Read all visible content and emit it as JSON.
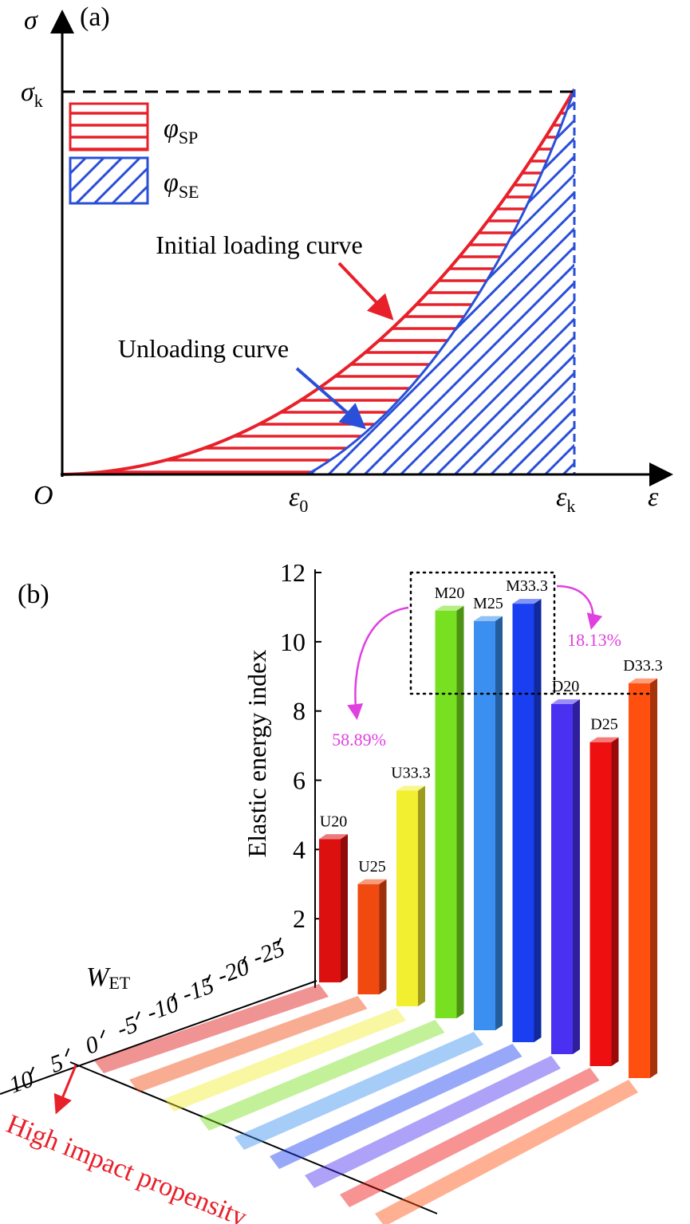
{
  "panel_a": {
    "label": "(a)",
    "y_axis": "σ",
    "x_axis": "ε",
    "origin": "O",
    "sigma_k": {
      "symbol": "σ",
      "sub": "k"
    },
    "eps_0": {
      "symbol": "ε",
      "sub": "0"
    },
    "eps_k": {
      "symbol": "ε",
      "sub": "k"
    },
    "legend": [
      {
        "symbol": "φ",
        "sub": "SP"
      },
      {
        "symbol": "φ",
        "sub": "SE"
      }
    ],
    "loading_label": "Initial loading curve",
    "unloading_label": "Unloading curve"
  },
  "chart_data": {
    "type": "bar",
    "panel_label": "(b)",
    "y_label": "Elastic energy index",
    "categories": [
      "U20",
      "U25",
      "U33.3",
      "M20",
      "M25",
      "M33.3",
      "D20",
      "D25",
      "D33.3"
    ],
    "values": [
      4.3,
      3.0,
      5.7,
      10.9,
      10.6,
      11.1,
      8.2,
      7.1,
      8.8
    ],
    "colors": [
      "#dd1010",
      "#f04a10",
      "#f2ee30",
      "#77e020",
      "#3a8ff0",
      "#1a3ff0",
      "#4a30f0",
      "#ee1010",
      "#ff5010"
    ],
    "ylim": [
      0,
      12
    ],
    "yticks": [
      2,
      4,
      6,
      8,
      10,
      12
    ],
    "depth_label": {
      "symbol": "W",
      "sub": "ET"
    },
    "depth_lim": [
      10,
      -25
    ],
    "depth_ticks": [
      10,
      5,
      0,
      -5,
      -10,
      -15,
      -20,
      -25
    ],
    "annotations": [
      "58.89%",
      "18.13%"
    ],
    "note": "High impact propensity"
  }
}
